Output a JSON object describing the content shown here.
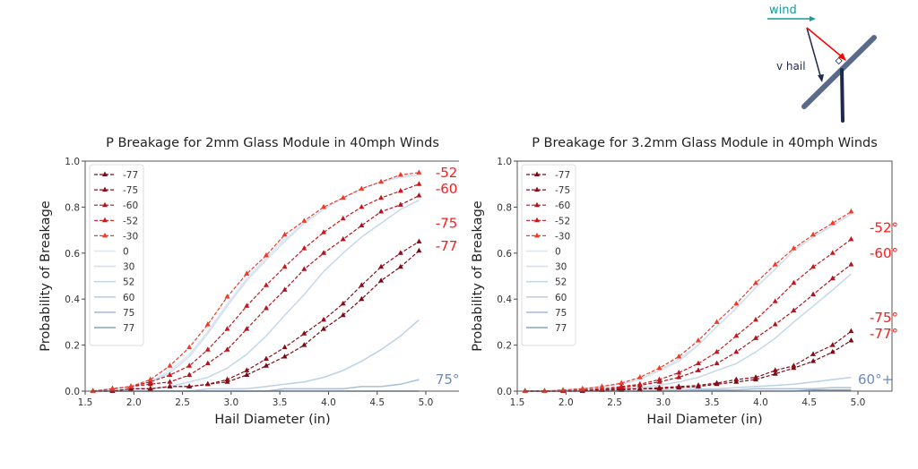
{
  "diagram": {
    "wind_label": "wind",
    "hail_label": "v hail",
    "colors": {
      "wind": "#1a9a9a",
      "hail": "#1f2a4a",
      "normal": "#ff0000",
      "module": "#5a6a8a",
      "post": "#1f2a4a"
    }
  },
  "chart_data": [
    {
      "type": "line",
      "title": "P Breakage for 2mm Glass Module in 40mph Winds",
      "xlabel": "Hail Diameter (in)",
      "ylabel": "Probability of Breakage",
      "xlim": [
        1.5,
        5.35
      ],
      "ylim": [
        0.0,
        1.0
      ],
      "xticks": [
        "1.5",
        "2.0",
        "2.5",
        "3.0",
        "3.5",
        "4.0",
        "4.5",
        "5.0"
      ],
      "yticks": [
        "0.0",
        "0.2",
        "0.4",
        "0.6",
        "0.8",
        "1.0"
      ],
      "grid": false,
      "legend_position": "upper left",
      "x": [
        1.58,
        1.78,
        1.97,
        2.17,
        2.37,
        2.57,
        2.76,
        2.96,
        3.16,
        3.36,
        3.55,
        3.75,
        3.95,
        4.15,
        4.34,
        4.54,
        4.74,
        4.93
      ],
      "series": [
        {
          "name": "-77",
          "style": "dashed-marker",
          "color": "#7a0a14",
          "values": [
            0.0,
            0.0,
            0.01,
            0.01,
            0.02,
            0.02,
            0.03,
            0.04,
            0.07,
            0.11,
            0.15,
            0.2,
            0.27,
            0.33,
            0.4,
            0.48,
            0.54,
            0.61
          ]
        },
        {
          "name": "-75",
          "style": "dashed-marker",
          "color": "#8e0c18",
          "values": [
            0.0,
            0.0,
            0.01,
            0.01,
            0.02,
            0.02,
            0.03,
            0.05,
            0.09,
            0.14,
            0.19,
            0.25,
            0.31,
            0.38,
            0.46,
            0.54,
            0.6,
            0.65
          ]
        },
        {
          "name": "-60",
          "style": "dashed-marker",
          "color": "#b0141e",
          "values": [
            0.0,
            0.01,
            0.02,
            0.03,
            0.04,
            0.07,
            0.12,
            0.18,
            0.27,
            0.36,
            0.44,
            0.53,
            0.6,
            0.66,
            0.72,
            0.78,
            0.81,
            0.85
          ]
        },
        {
          "name": "-52",
          "style": "dashed-marker",
          "color": "#c8181e",
          "values": [
            0.0,
            0.01,
            0.02,
            0.04,
            0.07,
            0.11,
            0.18,
            0.27,
            0.37,
            0.46,
            0.54,
            0.62,
            0.69,
            0.75,
            0.8,
            0.84,
            0.87,
            0.9
          ]
        },
        {
          "name": "-30",
          "style": "dashed-marker",
          "color": "#f03a2a",
          "values": [
            0.0,
            0.01,
            0.02,
            0.05,
            0.11,
            0.19,
            0.29,
            0.41,
            0.51,
            0.59,
            0.68,
            0.74,
            0.8,
            0.84,
            0.88,
            0.91,
            0.94,
            0.95
          ]
        },
        {
          "name": "0",
          "style": "solid",
          "color": "#dbe7f3",
          "values": [
            0.0,
            0.01,
            0.02,
            0.04,
            0.09,
            0.16,
            0.26,
            0.38,
            0.49,
            0.58,
            0.66,
            0.73,
            0.79,
            0.84,
            0.88,
            0.91,
            0.93,
            0.94
          ]
        },
        {
          "name": "30",
          "style": "solid",
          "color": "#d0e0f0",
          "values": [
            0.0,
            0.01,
            0.02,
            0.04,
            0.08,
            0.15,
            0.25,
            0.37,
            0.48,
            0.57,
            0.65,
            0.73,
            0.79,
            0.84,
            0.88,
            0.91,
            0.93,
            0.94
          ]
        },
        {
          "name": "52",
          "style": "solid",
          "color": "#c4d8ec",
          "values": [
            0.0,
            0.0,
            0.01,
            0.01,
            0.02,
            0.04,
            0.06,
            0.1,
            0.16,
            0.24,
            0.33,
            0.42,
            0.52,
            0.6,
            0.67,
            0.73,
            0.79,
            0.83
          ]
        },
        {
          "name": "60",
          "style": "solid",
          "color": "#bcd0e6",
          "values": [
            0.0,
            0.0,
            0.0,
            0.0,
            0.0,
            0.0,
            0.01,
            0.01,
            0.01,
            0.02,
            0.03,
            0.04,
            0.06,
            0.09,
            0.13,
            0.18,
            0.24,
            0.31
          ]
        },
        {
          "name": "75",
          "style": "solid",
          "color": "#a9bfd8",
          "values": [
            0.0,
            0.0,
            0.0,
            0.0,
            0.0,
            0.0,
            0.0,
            0.0,
            0.0,
            0.0,
            0.01,
            0.01,
            0.01,
            0.01,
            0.02,
            0.02,
            0.03,
            0.05
          ]
        },
        {
          "name": "77",
          "style": "solid",
          "color": "#8aa2c4",
          "values": [
            0.0,
            0.0,
            0.0,
            0.0,
            0.0,
            0.0,
            0.0,
            0.0,
            0.0,
            0.0,
            0.0,
            0.0,
            0.0,
            0.0,
            0.0,
            0.0,
            0.0,
            0.0
          ]
        }
      ],
      "annotations": [
        {
          "text": "-52°",
          "x": 5.1,
          "y": 0.95,
          "color": "#ff1a1a"
        },
        {
          "text": "-60°",
          "x": 5.1,
          "y": 0.88,
          "color": "#ff1a1a"
        },
        {
          "text": "-75°",
          "x": 5.1,
          "y": 0.73,
          "color": "#ff1a1a"
        },
        {
          "text": "-77°",
          "x": 5.1,
          "y": 0.63,
          "color": "#ff1a1a"
        },
        {
          "text": "75°+",
          "x": 5.1,
          "y": 0.05,
          "color": "#6f8ab8"
        }
      ]
    },
    {
      "type": "line",
      "title": "P Breakage for 3.2mm Glass Module in 40mph Winds",
      "xlabel": "Hail Diameter (in)",
      "ylabel": "Probability of Breakage",
      "xlim": [
        1.5,
        5.35
      ],
      "ylim": [
        0.0,
        1.0
      ],
      "xticks": [
        "1.5",
        "2.0",
        "2.5",
        "3.0",
        "3.5",
        "4.0",
        "4.5",
        "5.0"
      ],
      "yticks": [
        "0.0",
        "0.2",
        "0.4",
        "0.6",
        "0.8",
        "1.0"
      ],
      "grid": false,
      "legend_position": "upper left",
      "x": [
        1.58,
        1.78,
        1.97,
        2.17,
        2.37,
        2.57,
        2.76,
        2.96,
        3.16,
        3.36,
        3.55,
        3.75,
        3.95,
        4.15,
        4.34,
        4.54,
        4.74,
        4.93
      ],
      "series": [
        {
          "name": "-77",
          "style": "dashed-marker",
          "color": "#7a0a14",
          "values": [
            0.0,
            0.0,
            0.0,
            0.0,
            0.005,
            0.005,
            0.01,
            0.01,
            0.015,
            0.02,
            0.03,
            0.04,
            0.05,
            0.075,
            0.1,
            0.13,
            0.17,
            0.22
          ]
        },
        {
          "name": "-75",
          "style": "dashed-marker",
          "color": "#8e0c18",
          "values": [
            0.0,
            0.0,
            0.0,
            0.0,
            0.005,
            0.01,
            0.01,
            0.015,
            0.02,
            0.025,
            0.035,
            0.05,
            0.06,
            0.09,
            0.11,
            0.16,
            0.2,
            0.26
          ]
        },
        {
          "name": "-60",
          "style": "dashed-marker",
          "color": "#b0141e",
          "values": [
            0.0,
            0.0,
            0.0,
            0.005,
            0.01,
            0.015,
            0.025,
            0.04,
            0.06,
            0.09,
            0.12,
            0.17,
            0.23,
            0.29,
            0.35,
            0.42,
            0.49,
            0.55
          ]
        },
        {
          "name": "-52",
          "style": "dashed-marker",
          "color": "#c8181e",
          "values": [
            0.0,
            0.0,
            0.0,
            0.005,
            0.01,
            0.02,
            0.03,
            0.05,
            0.08,
            0.12,
            0.17,
            0.24,
            0.31,
            0.39,
            0.47,
            0.54,
            0.6,
            0.66
          ]
        },
        {
          "name": "-30",
          "style": "dashed-marker",
          "color": "#f03a2a",
          "values": [
            0.0,
            0.0,
            0.005,
            0.01,
            0.02,
            0.035,
            0.06,
            0.1,
            0.15,
            0.22,
            0.3,
            0.38,
            0.47,
            0.55,
            0.62,
            0.68,
            0.73,
            0.78
          ]
        },
        {
          "name": "0",
          "style": "solid",
          "color": "#dbe7f3",
          "values": [
            0.0,
            0.0,
            0.005,
            0.01,
            0.02,
            0.03,
            0.05,
            0.09,
            0.14,
            0.2,
            0.28,
            0.36,
            0.45,
            0.53,
            0.61,
            0.67,
            0.72,
            0.77
          ]
        },
        {
          "name": "30",
          "style": "solid",
          "color": "#d0e0f0",
          "values": [
            0.0,
            0.0,
            0.005,
            0.01,
            0.02,
            0.03,
            0.05,
            0.09,
            0.13,
            0.2,
            0.28,
            0.36,
            0.45,
            0.53,
            0.61,
            0.67,
            0.72,
            0.77
          ]
        },
        {
          "name": "52",
          "style": "solid",
          "color": "#c4d8ec",
          "values": [
            0.0,
            0.0,
            0.0,
            0.0,
            0.005,
            0.01,
            0.015,
            0.025,
            0.04,
            0.06,
            0.09,
            0.12,
            0.17,
            0.23,
            0.3,
            0.37,
            0.44,
            0.51
          ]
        },
        {
          "name": "60",
          "style": "solid",
          "color": "#bcd0e6",
          "values": [
            0.0,
            0.0,
            0.0,
            0.0,
            0.0,
            0.0,
            0.0,
            0.005,
            0.005,
            0.01,
            0.01,
            0.015,
            0.02,
            0.025,
            0.03,
            0.04,
            0.05,
            0.06
          ]
        },
        {
          "name": "75",
          "style": "solid",
          "color": "#a9bfd8",
          "values": [
            0.0,
            0.0,
            0.0,
            0.0,
            0.0,
            0.0,
            0.0,
            0.0,
            0.0,
            0.005,
            0.005,
            0.005,
            0.01,
            0.01,
            0.01,
            0.01,
            0.015,
            0.015
          ]
        },
        {
          "name": "77",
          "style": "solid",
          "color": "#8aa2c4",
          "values": [
            0.0,
            0.0,
            0.0,
            0.0,
            0.0,
            0.0,
            0.0,
            0.0,
            0.0,
            0.0,
            0.0,
            0.0,
            0.0,
            0.0,
            0.0,
            0.005,
            0.005,
            0.005
          ]
        }
      ],
      "annotations": [
        {
          "text": "-52°",
          "x": 5.12,
          "y": 0.71,
          "color": "#ff1a1a"
        },
        {
          "text": "-60°",
          "x": 5.12,
          "y": 0.6,
          "color": "#ff1a1a"
        },
        {
          "text": "-75°",
          "x": 5.12,
          "y": 0.32,
          "color": "#ff1a1a"
        },
        {
          "text": "-77°",
          "x": 5.12,
          "y": 0.25,
          "color": "#ff1a1a"
        },
        {
          "text": "60°+",
          "x": 5.0,
          "y": 0.05,
          "color": "#6f8ab8"
        }
      ]
    }
  ]
}
